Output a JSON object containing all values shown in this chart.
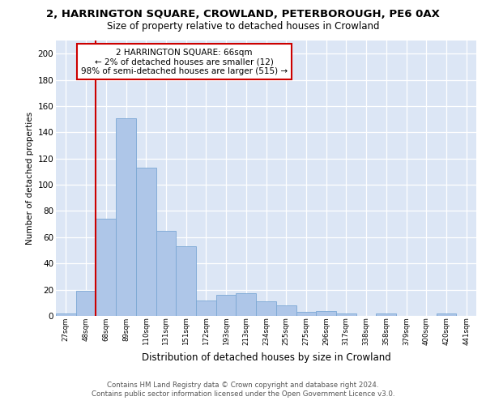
{
  "title_line1": "2, HARRINGTON SQUARE, CROWLAND, PETERBOROUGH, PE6 0AX",
  "title_line2": "Size of property relative to detached houses in Crowland",
  "xlabel": "Distribution of detached houses by size in Crowland",
  "ylabel": "Number of detached properties",
  "categories": [
    "27sqm",
    "48sqm",
    "68sqm",
    "89sqm",
    "110sqm",
    "131sqm",
    "151sqm",
    "172sqm",
    "193sqm",
    "213sqm",
    "234sqm",
    "255sqm",
    "275sqm",
    "296sqm",
    "317sqm",
    "338sqm",
    "358sqm",
    "379sqm",
    "400sqm",
    "420sqm",
    "441sqm"
  ],
  "values": [
    2,
    19,
    74,
    151,
    113,
    65,
    53,
    12,
    16,
    17,
    11,
    8,
    3,
    4,
    2,
    0,
    2,
    0,
    0,
    2,
    0
  ],
  "bar_color": "#aec6e8",
  "bar_edge_color": "#7ba7d4",
  "highlight_bar_index": 2,
  "highlight_line_color": "#cc0000",
  "annotation_line1": "2 HARRINGTON SQUARE: 66sqm",
  "annotation_line2": "← 2% of detached houses are smaller (12)",
  "annotation_line3": "98% of semi-detached houses are larger (515) →",
  "annotation_box_color": "#ffffff",
  "annotation_box_edge_color": "#cc0000",
  "ylim": [
    0,
    210
  ],
  "yticks": [
    0,
    20,
    40,
    60,
    80,
    100,
    120,
    140,
    160,
    180,
    200
  ],
  "plot_bg_color": "#dce6f5",
  "grid_color": "#ffffff",
  "fig_bg_color": "#ffffff",
  "footer_line1": "Contains HM Land Registry data © Crown copyright and database right 2024.",
  "footer_line2": "Contains public sector information licensed under the Open Government Licence v3.0."
}
